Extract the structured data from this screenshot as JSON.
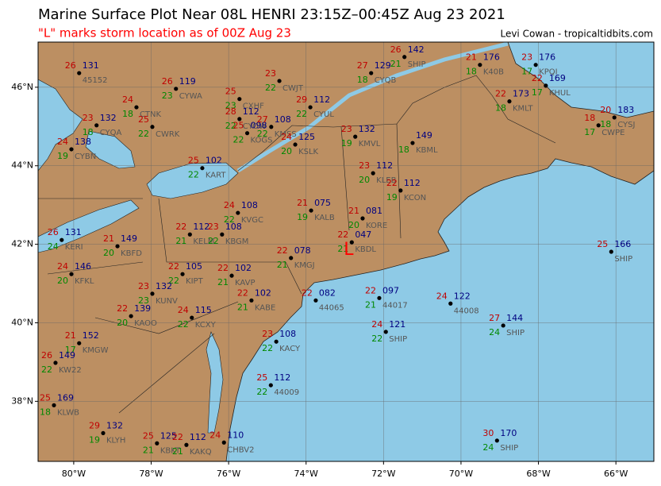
{
  "header": {
    "title": "Marine Surface Plot Near 08L HENRI 23:15Z–00:45Z Aug 23 2021",
    "subtitle": "\"L\" marks storm location as of 00Z Aug 23",
    "credit": "Levi Cowan - tropicaltidbits.com"
  },
  "map": {
    "xlim": [
      -80.92,
      -65.02
    ],
    "ylim": [
      36.47,
      47.15
    ],
    "xticks": [
      {
        "value": -80,
        "label": "80°W"
      },
      {
        "value": -78,
        "label": "78°W"
      },
      {
        "value": -76,
        "label": "76°W"
      },
      {
        "value": -74,
        "label": "74°W"
      },
      {
        "value": -72,
        "label": "72°W"
      },
      {
        "value": -70,
        "label": "70°W"
      },
      {
        "value": -68,
        "label": "68°W"
      },
      {
        "value": -66,
        "label": "66°W"
      }
    ],
    "yticks": [
      {
        "value": 38,
        "label": "38°N"
      },
      {
        "value": 40,
        "label": "40°N"
      },
      {
        "value": 42,
        "label": "42°N"
      },
      {
        "value": 44,
        "label": "44°N"
      },
      {
        "value": 46,
        "label": "46°N"
      }
    ],
    "grid": true
  },
  "storm": {
    "label": "L",
    "lon": -72.9,
    "lat": 41.85
  },
  "stations": [
    {
      "id": "45152",
      "lon": -79.86,
      "lat": 46.36,
      "temp": 26,
      "dew": null,
      "pressure": "131"
    },
    {
      "id": "CYWA",
      "lon": -77.36,
      "lat": 45.96,
      "temp": 26,
      "dew": 23,
      "pressure": "119"
    },
    {
      "id": "CWJT",
      "lon": -74.69,
      "lat": 46.16,
      "temp": 23,
      "dew": 22,
      "pressure": null
    },
    {
      "id": "CXHF",
      "lon": -75.72,
      "lat": 45.7,
      "temp": 25,
      "dew": 23,
      "pressure": null
    },
    {
      "id": "CTNK",
      "lon": -78.38,
      "lat": 45.49,
      "temp": 24,
      "dew": 18,
      "pressure": null
    },
    {
      "id": "CWRK",
      "lon": -77.97,
      "lat": 44.99,
      "temp": 25,
      "dew": 22,
      "pressure": null
    },
    {
      "id": "CYQA",
      "lon": -79.41,
      "lat": 45.03,
      "temp": 23,
      "dew": 18,
      "pressure": "132"
    },
    {
      "id": "CYBN",
      "lon": -80.06,
      "lat": 44.42,
      "temp": 24,
      "dew": 19,
      "pressure": "138"
    },
    {
      "id": "CYOW",
      "lon": -75.72,
      "lat": 45.19,
      "temp": 28,
      "dew": 22,
      "pressure": "112"
    },
    {
      "id": "KOGS",
      "lon": -75.52,
      "lat": 44.83,
      "temp": 25,
      "dew": 22,
      "pressure": "098"
    },
    {
      "id": "KMSS",
      "lon": -74.9,
      "lat": 44.99,
      "temp": 27,
      "dew": 22,
      "pressure": "108"
    },
    {
      "id": "CYUL",
      "lon": -73.89,
      "lat": 45.49,
      "temp": 29,
      "dew": 22,
      "pressure": "112"
    },
    {
      "id": "CYQB",
      "lon": -72.32,
      "lat": 46.36,
      "temp": 27,
      "dew": 18,
      "pressure": "129"
    },
    {
      "id": "KSLK",
      "lon": -74.28,
      "lat": 44.54,
      "temp": 24,
      "dew": 20,
      "pressure": "125"
    },
    {
      "id": "KMVL",
      "lon": -72.73,
      "lat": 44.74,
      "temp": 23,
      "dew": 19,
      "pressure": "132"
    },
    {
      "id": "KLEB",
      "lon": -72.27,
      "lat": 43.81,
      "temp": 23,
      "dew": 20,
      "pressure": "112"
    },
    {
      "id": "KBML",
      "lon": -71.25,
      "lat": 44.58,
      "temp": null,
      "dew": 18,
      "pressure": "149"
    },
    {
      "id": "KCON",
      "lon": -71.56,
      "lat": 43.37,
      "temp": 22,
      "dew": 19,
      "pressure": "112"
    },
    {
      "id": "KALB",
      "lon": -73.87,
      "lat": 42.86,
      "temp": 21,
      "dew": 19,
      "pressure": "075"
    },
    {
      "id": "KBDL",
      "lon": -72.82,
      "lat": 42.05,
      "temp": 22,
      "dew": 21,
      "pressure": "047"
    },
    {
      "id": "KORE",
      "lon": -72.54,
      "lat": 42.66,
      "temp": 21,
      "dew": 20,
      "pressure": "081"
    },
    {
      "id": "KMGJ",
      "lon": -74.39,
      "lat": 41.65,
      "temp": 22,
      "dew": 21,
      "pressure": "078"
    },
    {
      "id": "KAVP",
      "lon": -75.92,
      "lat": 41.2,
      "temp": 22,
      "dew": 21,
      "pressure": "102"
    },
    {
      "id": "KIPT",
      "lon": -77.19,
      "lat": 41.24,
      "temp": 22,
      "dew": 22,
      "pressure": "105"
    },
    {
      "id": "KUNV",
      "lon": -77.97,
      "lat": 40.74,
      "temp": 23,
      "dew": 23,
      "pressure": "132"
    },
    {
      "id": "KAOO",
      "lon": -78.52,
      "lat": 40.17,
      "temp": 22,
      "dew": 20,
      "pressure": "139"
    },
    {
      "id": "KCXY",
      "lon": -76.95,
      "lat": 40.13,
      "temp": 24,
      "dew": 22,
      "pressure": "115"
    },
    {
      "id": "KABE",
      "lon": -75.41,
      "lat": 40.57,
      "temp": 22,
      "dew": 21,
      "pressure": "102"
    },
    {
      "id": "44065",
      "lon": -73.75,
      "lat": 40.57,
      "temp": 22,
      "dew": null,
      "pressure": "082"
    },
    {
      "id": "44017",
      "lon": -72.11,
      "lat": 40.63,
      "temp": 22,
      "dew": 21,
      "pressure": "097"
    },
    {
      "id": "44008",
      "lon": -70.27,
      "lat": 40.49,
      "temp": 24,
      "dew": null,
      "pressure": "122"
    },
    {
      "id": "SHIP",
      "lon": -68.91,
      "lat": 39.93,
      "temp": 27,
      "dew": 24,
      "pressure": "144"
    },
    {
      "id": "SHIP",
      "lon": -66.12,
      "lat": 41.81,
      "temp": 25,
      "dew": null,
      "pressure": "166"
    },
    {
      "id": "SHIP",
      "lon": -69.07,
      "lat": 37.0,
      "temp": 30,
      "dew": 24,
      "pressure": "170"
    },
    {
      "id": "SHIP",
      "lon": -71.94,
      "lat": 39.77,
      "temp": 24,
      "dew": 22,
      "pressure": "121"
    },
    {
      "id": "SHIP",
      "lon": -71.46,
      "lat": 46.77,
      "temp": 26,
      "dew": 21,
      "pressure": "142"
    },
    {
      "id": "KACY",
      "lon": -74.77,
      "lat": 39.52,
      "temp": 23,
      "dew": 22,
      "pressure": "108"
    },
    {
      "id": "44009",
      "lon": -74.91,
      "lat": 38.41,
      "temp": 25,
      "dew": 22,
      "pressure": "112"
    },
    {
      "id": "CHBV2",
      "lon": -76.12,
      "lat": 36.95,
      "temp": 24,
      "dew": null,
      "pressure": "110"
    },
    {
      "id": "KMGW",
      "lon": -79.86,
      "lat": 39.48,
      "temp": 21,
      "dew": 17,
      "pressure": "152"
    },
    {
      "id": "KW22",
      "lon": -80.47,
      "lat": 38.98,
      "temp": 26,
      "dew": 22,
      "pressure": "149"
    },
    {
      "id": "KLWB",
      "lon": -80.51,
      "lat": 37.9,
      "temp": 25,
      "dew": 18,
      "pressure": "169"
    },
    {
      "id": "KLYH",
      "lon": -79.24,
      "lat": 37.19,
      "temp": 29,
      "dew": 19,
      "pressure": "132"
    },
    {
      "id": "KBKT",
      "lon": -77.85,
      "lat": 36.93,
      "temp": 25,
      "dew": 21,
      "pressure": "125"
    },
    {
      "id": "KAKQ",
      "lon": -77.09,
      "lat": 36.89,
      "temp": 22,
      "dew": 21,
      "pressure": "112"
    },
    {
      "id": "KFKL",
      "lon": -80.06,
      "lat": 41.24,
      "temp": 24,
      "dew": 20,
      "pressure": "146"
    },
    {
      "id": "KERI",
      "lon": -80.31,
      "lat": 42.11,
      "temp": 26,
      "dew": 24,
      "pressure": "131"
    },
    {
      "id": "KBFD",
      "lon": -78.87,
      "lat": 41.95,
      "temp": 21,
      "dew": 20,
      "pressure": "149"
    },
    {
      "id": "KELM",
      "lon": -77.0,
      "lat": 42.25,
      "temp": 22,
      "dew": 21,
      "pressure": "112"
    },
    {
      "id": "KBGM",
      "lon": -76.17,
      "lat": 42.25,
      "temp": 23,
      "dew": 22,
      "pressure": "108"
    },
    {
      "id": "KVGC",
      "lon": -75.76,
      "lat": 42.8,
      "temp": 24,
      "dew": 22,
      "pressure": "108"
    },
    {
      "id": "KART",
      "lon": -76.68,
      "lat": 43.94,
      "temp": 25,
      "dew": 22,
      "pressure": "102"
    },
    {
      "id": "CWPE",
      "lon": -66.45,
      "lat": 45.03,
      "temp": 18,
      "dew": 17,
      "pressure": null
    },
    {
      "id": "KMLT",
      "lon": -68.75,
      "lat": 45.64,
      "temp": 22,
      "dew": 18,
      "pressure": "173"
    },
    {
      "id": "KHUL",
      "lon": -67.81,
      "lat": 46.04,
      "temp": 22,
      "dew": 17,
      "pressure": "169"
    },
    {
      "id": "KPQI",
      "lon": -68.07,
      "lat": 46.57,
      "temp": 23,
      "dew": 17,
      "pressure": "176"
    },
    {
      "id": "K40B",
      "lon": -69.51,
      "lat": 46.57,
      "temp": 21,
      "dew": 18,
      "pressure": "176"
    },
    {
      "id": "CYSJ",
      "lon": -66.04,
      "lat": 45.23,
      "temp": 20,
      "dew": 18,
      "pressure": "183"
    }
  ]
}
